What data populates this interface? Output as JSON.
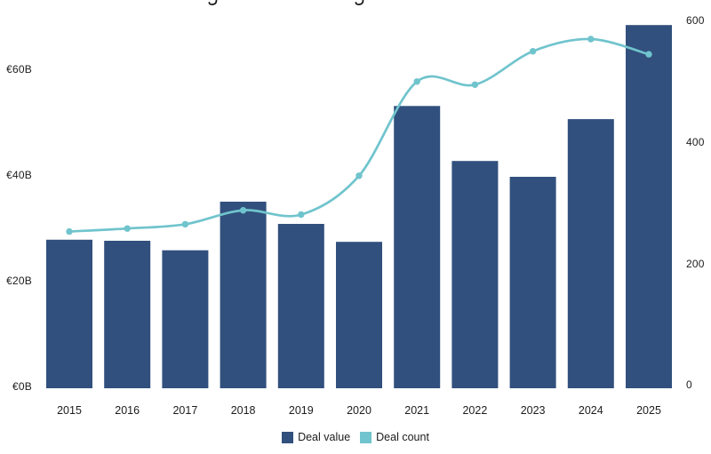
{
  "chart_data": {
    "type": "bar",
    "subtype": "combo-bar-line-dual-axis",
    "title": "",
    "categories": [
      "2015",
      "2016",
      "2017",
      "2018",
      "2019",
      "2020",
      "2021",
      "2022",
      "2023",
      "2024",
      "2025"
    ],
    "series": [
      {
        "name": "Deal value",
        "type": "bar",
        "axis": "left",
        "unit": "EUR billions",
        "color": "#31507d",
        "values": [
          28.1,
          27.9,
          26.1,
          35.3,
          31.1,
          27.7,
          53.4,
          43.0,
          40.0,
          50.9,
          68.7
        ]
      },
      {
        "name": "Deal count",
        "type": "line",
        "axis": "right",
        "unit": "deals",
        "color": "#70c4cd",
        "values": [
          253,
          258,
          265,
          288,
          281,
          345,
          500,
          495,
          550,
          570,
          545
        ]
      }
    ],
    "left_axis": {
      "ticks": [
        "€0B",
        "€20B",
        "€40B",
        "€60B"
      ],
      "values": [
        0,
        20,
        40,
        60
      ],
      "range": [
        0,
        73
      ]
    },
    "right_axis": {
      "ticks": [
        "0",
        "200",
        "400",
        "600"
      ],
      "values": [
        0,
        200,
        400,
        600
      ],
      "range": [
        0,
        610
      ]
    },
    "grid": false,
    "legend_position": "bottom"
  },
  "legend": {
    "items": [
      {
        "label": "Deal value",
        "color": "#31507d"
      },
      {
        "label": "Deal count",
        "color": "#70c4cd"
      }
    ]
  }
}
